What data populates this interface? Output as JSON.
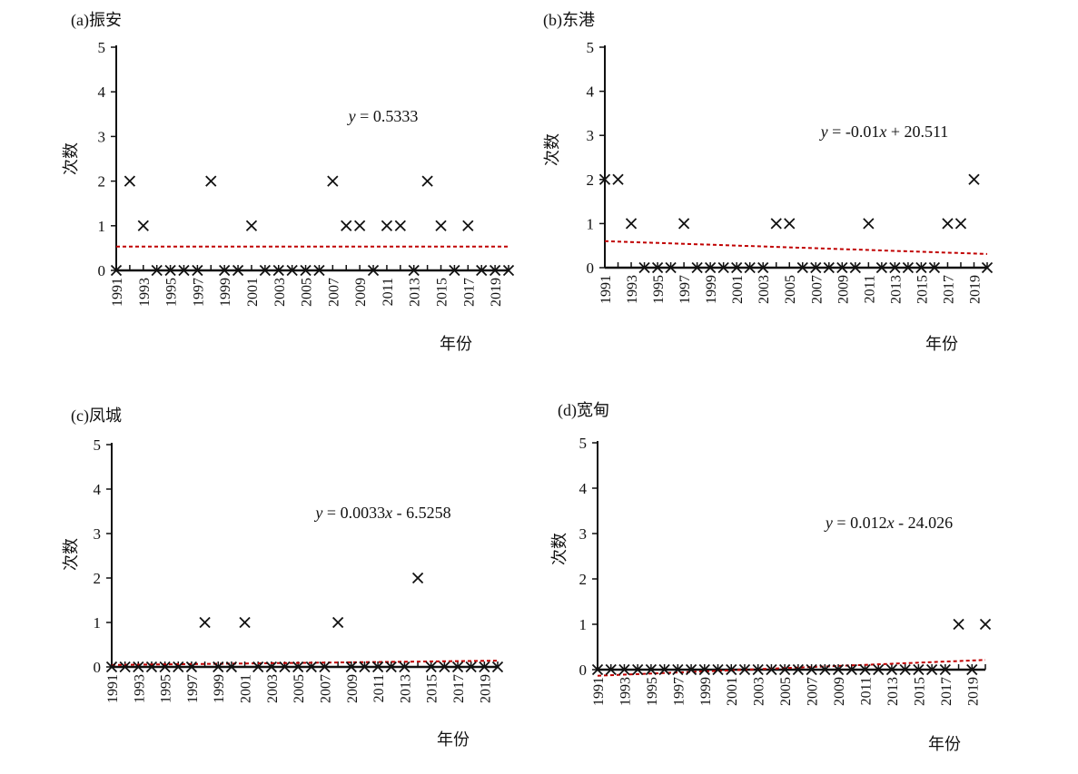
{
  "style": {
    "marker_color": "#111111",
    "trend_color": "#c00000",
    "axis_color": "#111111"
  },
  "chart_data": [
    {
      "type": "scatter",
      "title": "(a)振安",
      "xlabel": "年份",
      "ylabel": "次数",
      "x": [
        1991,
        1992,
        1993,
        1994,
        1995,
        1996,
        1997,
        1998,
        1999,
        2000,
        2001,
        2002,
        2003,
        2004,
        2005,
        2006,
        2007,
        2008,
        2009,
        2010,
        2011,
        2012,
        2013,
        2014,
        2015,
        2016,
        2017,
        2018,
        2019,
        2020
      ],
      "series": [
        {
          "marker": "x",
          "values": [
            0,
            2,
            1,
            0,
            0,
            0,
            0,
            2,
            0,
            0,
            1,
            0,
            0,
            0,
            0,
            0,
            2,
            1,
            1,
            0,
            1,
            1,
            0,
            2,
            1,
            0,
            1,
            0,
            0,
            0
          ]
        }
      ],
      "trendline": {
        "label": "y = 0.5333",
        "slope": 0,
        "intercept": 0.5333
      },
      "xticks": [
        "1991",
        "1993",
        "1995",
        "1997",
        "1999",
        "2001",
        "2003",
        "2005",
        "2007",
        "2009",
        "2011",
        "2013",
        "2015",
        "2017",
        "2019"
      ],
      "yticks": [
        "0",
        "1",
        "2",
        "3",
        "4",
        "5"
      ],
      "xlim": [
        1991,
        2020
      ],
      "ylim": [
        0,
        5
      ],
      "grid": false
    },
    {
      "type": "scatter",
      "title": "(b)东港",
      "xlabel": "年份",
      "ylabel": "次数",
      "x": [
        1991,
        1992,
        1993,
        1994,
        1995,
        1996,
        1997,
        1998,
        1999,
        2000,
        2001,
        2002,
        2003,
        2004,
        2005,
        2006,
        2007,
        2008,
        2009,
        2010,
        2011,
        2012,
        2013,
        2014,
        2015,
        2016,
        2017,
        2018,
        2019,
        2020
      ],
      "series": [
        {
          "marker": "x",
          "values": [
            2,
            2,
            1,
            0,
            0,
            0,
            1,
            0,
            0,
            0,
            0,
            0,
            0,
            1,
            1,
            0,
            0,
            0,
            0,
            0,
            1,
            0,
            0,
            0,
            0,
            0,
            1,
            1,
            2,
            0
          ]
        }
      ],
      "trendline": {
        "label": "y = -0.01x + 20.511",
        "slope": -0.01,
        "intercept": 20.511
      },
      "xticks": [
        "1991",
        "1993",
        "1995",
        "1997",
        "1999",
        "2001",
        "2003",
        "2005",
        "2007",
        "2009",
        "2011",
        "2013",
        "2015",
        "2017",
        "2019"
      ],
      "yticks": [
        "0",
        "1",
        "2",
        "3",
        "4",
        "5"
      ],
      "xlim": [
        1991,
        2020
      ],
      "ylim": [
        0,
        5
      ],
      "grid": false
    },
    {
      "type": "scatter",
      "title": "(c)凤城",
      "xlabel": "年份",
      "ylabel": "次数",
      "x": [
        1991,
        1992,
        1993,
        1994,
        1995,
        1996,
        1997,
        1998,
        1999,
        2000,
        2001,
        2002,
        2003,
        2004,
        2005,
        2006,
        2007,
        2008,
        2009,
        2010,
        2011,
        2012,
        2013,
        2014,
        2015,
        2016,
        2017,
        2018,
        2019,
        2020
      ],
      "series": [
        {
          "marker": "x",
          "values": [
            0,
            0,
            0,
            0,
            0,
            0,
            0,
            1,
            0,
            0,
            1,
            0,
            0,
            0,
            0,
            0,
            0,
            1,
            0,
            0,
            0,
            0,
            0,
            2,
            0,
            0,
            0,
            0,
            0,
            0
          ]
        }
      ],
      "trendline": {
        "label": "y = 0.0033x - 6.5258",
        "slope": 0.0033,
        "intercept": -6.5258
      },
      "xticks": [
        "1991",
        "1993",
        "1995",
        "1997",
        "1999",
        "2001",
        "2003",
        "2005",
        "2007",
        "2009",
        "2011",
        "2013",
        "2015",
        "2017",
        "2019"
      ],
      "yticks": [
        "0",
        "1",
        "2",
        "3",
        "4",
        "5"
      ],
      "xlim": [
        1991,
        2020
      ],
      "ylim": [
        0,
        5
      ],
      "grid": false
    },
    {
      "type": "scatter",
      "title": "(d)宽甸",
      "xlabel": "年份",
      "ylabel": "次数",
      "x": [
        1991,
        1992,
        1993,
        1994,
        1995,
        1996,
        1997,
        1998,
        1999,
        2000,
        2001,
        2002,
        2003,
        2004,
        2005,
        2006,
        2007,
        2008,
        2009,
        2010,
        2011,
        2012,
        2013,
        2014,
        2015,
        2016,
        2017,
        2018,
        2019,
        2020
      ],
      "series": [
        {
          "marker": "x",
          "values": [
            0,
            0,
            0,
            0,
            0,
            0,
            0,
            0,
            0,
            0,
            0,
            0,
            0,
            0,
            0,
            0,
            0,
            0,
            0,
            0,
            0,
            0,
            0,
            0,
            0,
            0,
            0,
            1,
            0,
            1
          ]
        }
      ],
      "trendline": {
        "label": "y = 0.012x - 24.026",
        "slope": 0.012,
        "intercept": -24.026
      },
      "xticks": [
        "1991",
        "1993",
        "1995",
        "1997",
        "1999",
        "2001",
        "2003",
        "2005",
        "2007",
        "2009",
        "2011",
        "2013",
        "2015",
        "2017",
        "2019"
      ],
      "yticks": [
        "0",
        "1",
        "2",
        "3",
        "4",
        "5"
      ],
      "xlim": [
        1991,
        2020
      ],
      "ylim": [
        0,
        5
      ],
      "grid": false
    }
  ]
}
